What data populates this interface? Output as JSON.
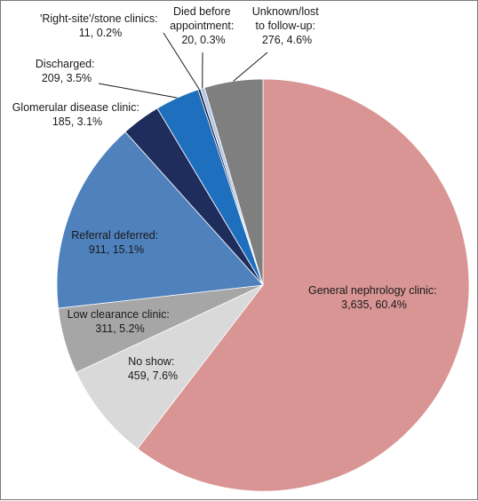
{
  "chart_data": {
    "type": "pie",
    "title": "",
    "slices": [
      {
        "line1": "General nephrology clinic:",
        "line2": "3,635, 60.4%",
        "value": 3635,
        "percent": 60.4,
        "color": "#d99594"
      },
      {
        "line1": "No show:",
        "line2": "459, 7.6%",
        "value": 459,
        "percent": 7.6,
        "color": "#d9d9d9"
      },
      {
        "line1": "Low clearance clinic:",
        "line2": "311, 5.2%",
        "value": 311,
        "percent": 5.2,
        "color": "#a6a6a6"
      },
      {
        "line1": "Referral deferred:",
        "line2": "911, 15.1%",
        "value": 911,
        "percent": 15.1,
        "color": "#4f81bd"
      },
      {
        "line1": "Glomerular disease clinic:",
        "line2": "185, 3.1%",
        "value": 185,
        "percent": 3.1,
        "color": "#1f2d5c"
      },
      {
        "line1": "Discharged:",
        "line2": "209, 3.5%",
        "value": 209,
        "percent": 3.5,
        "color": "#1f6fbf"
      },
      {
        "line1": "'Right-site'/stone clinics:",
        "line2": "11, 0.2%",
        "value": 11,
        "percent": 0.2,
        "color": "#0d1b3e"
      },
      {
        "line1": "Died before",
        "line2": "appointment:",
        "line3": "20, 0.3%",
        "value": 20,
        "percent": 0.3,
        "color": "#b4c7e7"
      },
      {
        "line1": "Unknown/lost",
        "line2": "to follow-up:",
        "line3": "276, 4.6%",
        "value": 276,
        "percent": 4.6,
        "color": "#7f7f7f"
      }
    ]
  }
}
